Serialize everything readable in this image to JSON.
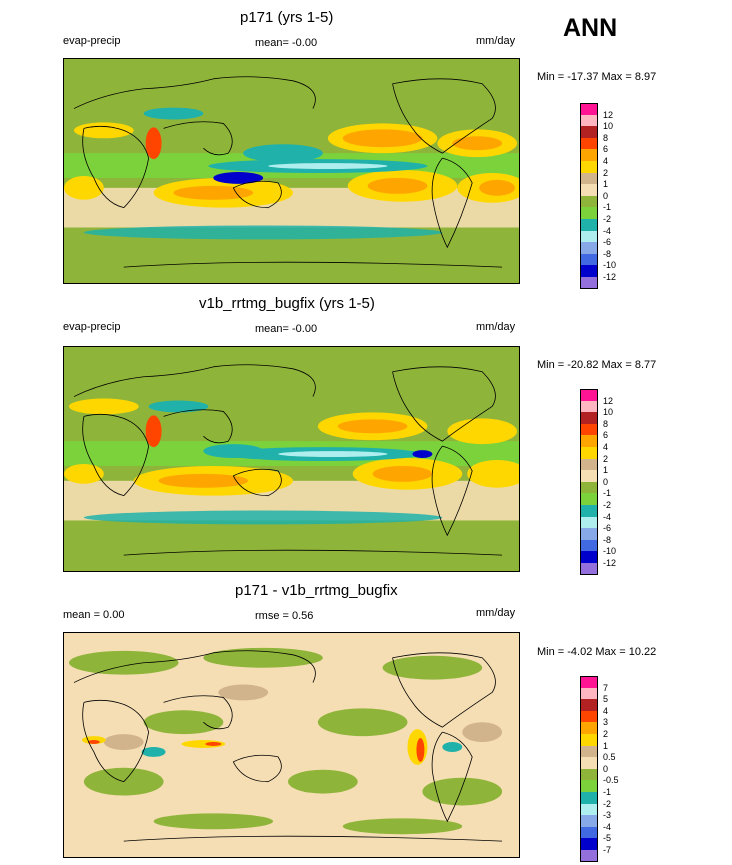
{
  "season": "ANN",
  "panels": [
    {
      "title": "p171 (yrs 1-5)",
      "left_label": "evap-precip",
      "center_label": "mean=  -0.00",
      "right_label": "mm/day",
      "minmax": "Min = -17.37 Max =   8.97",
      "levels": [
        "12",
        "10",
        "8",
        "6",
        "4",
        "2",
        "1",
        "0",
        "-1",
        "-2",
        "-4",
        "-6",
        "-8",
        "-10",
        "-12"
      ],
      "colors": [
        "#ff1493",
        "#ffb6c1",
        "#b22222",
        "#ff4500",
        "#ffa500",
        "#ffd700",
        "#d2b48c",
        "#f5deb3",
        "#8fb43a",
        "#7cd23b",
        "#20b2aa",
        "#afeeee",
        "#87a9e8",
        "#4169e1",
        "#0000cd",
        "#9370db"
      ]
    },
    {
      "title": "v1b_rrtmg_bugfix (yrs 1-5)",
      "left_label": "evap-precip",
      "center_label": "mean=  -0.00",
      "right_label": "mm/day",
      "minmax": "Min = -20.82 Max =   8.77",
      "levels": [
        "12",
        "10",
        "8",
        "6",
        "4",
        "2",
        "1",
        "0",
        "-1",
        "-2",
        "-4",
        "-6",
        "-8",
        "-10",
        "-12"
      ],
      "colors": [
        "#ff1493",
        "#ffb6c1",
        "#b22222",
        "#ff4500",
        "#ffa500",
        "#ffd700",
        "#d2b48c",
        "#f5deb3",
        "#8fb43a",
        "#7cd23b",
        "#20b2aa",
        "#afeeee",
        "#87a9e8",
        "#4169e1",
        "#0000cd",
        "#9370db"
      ]
    },
    {
      "title": "p171 - v1b_rrtmg_bugfix",
      "left_label": "mean =   0.00",
      "center_label": "rmse =   0.56",
      "right_label": "mm/day",
      "minmax": "Min =  -4.02 Max =  10.22",
      "levels": [
        "7",
        "5",
        "4",
        "3",
        "2",
        "1",
        "0.5",
        "0",
        "-0.5",
        "-1",
        "-2",
        "-3",
        "-4",
        "-5",
        "-7"
      ],
      "colors": [
        "#ff1493",
        "#ffb6c1",
        "#b22222",
        "#ff4500",
        "#ffa500",
        "#ffd700",
        "#d2b48c",
        "#f5deb3",
        "#8fb43a",
        "#7cd23b",
        "#20b2aa",
        "#afeeee",
        "#87a9e8",
        "#4169e1",
        "#0000cd",
        "#9370db"
      ]
    }
  ],
  "chart_data": [
    {
      "type": "heatmap",
      "title": "p171 (yrs 1-5)",
      "variable": "evap-precip",
      "units": "mm/day",
      "mean": -0.0,
      "min": -17.37,
      "max": 8.97,
      "contour_levels": [
        -12,
        -10,
        -8,
        -6,
        -4,
        -2,
        -1,
        0,
        1,
        2,
        4,
        6,
        8,
        10,
        12
      ]
    },
    {
      "type": "heatmap",
      "title": "v1b_rrtmg_bugfix (yrs 1-5)",
      "variable": "evap-precip",
      "units": "mm/day",
      "mean": -0.0,
      "min": -20.82,
      "max": 8.77,
      "contour_levels": [
        -12,
        -10,
        -8,
        -6,
        -4,
        -2,
        -1,
        0,
        1,
        2,
        4,
        6,
        8,
        10,
        12
      ]
    },
    {
      "type": "heatmap",
      "title": "p171 - v1b_rrtmg_bugfix",
      "units": "mm/day",
      "mean": 0.0,
      "rmse": 0.56,
      "min": -4.02,
      "max": 10.22,
      "contour_levels": [
        -7,
        -5,
        -4,
        -3,
        -2,
        -1,
        -0.5,
        0,
        0.5,
        1,
        2,
        3,
        4,
        5,
        7
      ]
    }
  ]
}
